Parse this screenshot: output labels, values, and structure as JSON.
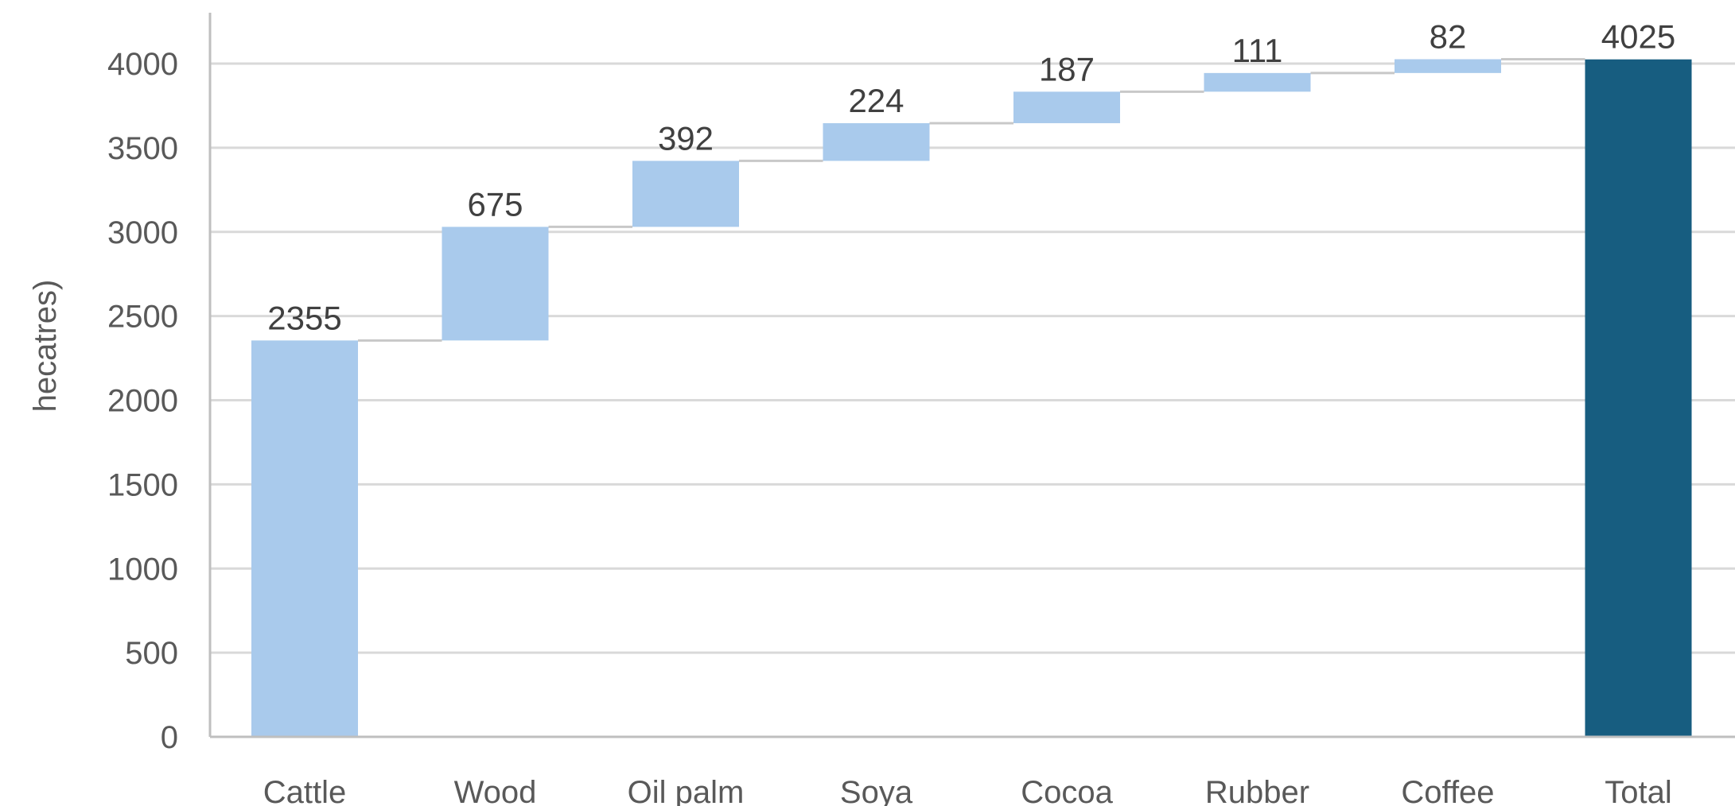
{
  "chart_data": {
    "type": "bar",
    "subtype": "waterfall",
    "title": "",
    "xlabel": "",
    "ylabel": "hecatres)",
    "ylim": [
      0,
      4250
    ],
    "yticks": [
      0,
      500,
      1000,
      1500,
      2000,
      2500,
      3000,
      3500,
      4000
    ],
    "grid": true,
    "legend": "none",
    "categories": [
      "Cattle",
      "Wood",
      "Oil palm",
      "Soya",
      "Cocoa",
      "Rubber",
      "Coffee",
      "Total"
    ],
    "values": [
      2355,
      675,
      392,
      224,
      187,
      111,
      82,
      4025
    ],
    "labels": [
      "2355",
      "675",
      "392",
      "224",
      "187",
      "111",
      "82",
      "4025"
    ],
    "is_total": [
      false,
      false,
      false,
      false,
      false,
      false,
      false,
      true
    ],
    "colors": {
      "increase": "#a9caec",
      "total": "#175d80",
      "grid": "#d9d9d9",
      "connector": "#c8c8c8",
      "axis": "#bfbfbf"
    }
  }
}
